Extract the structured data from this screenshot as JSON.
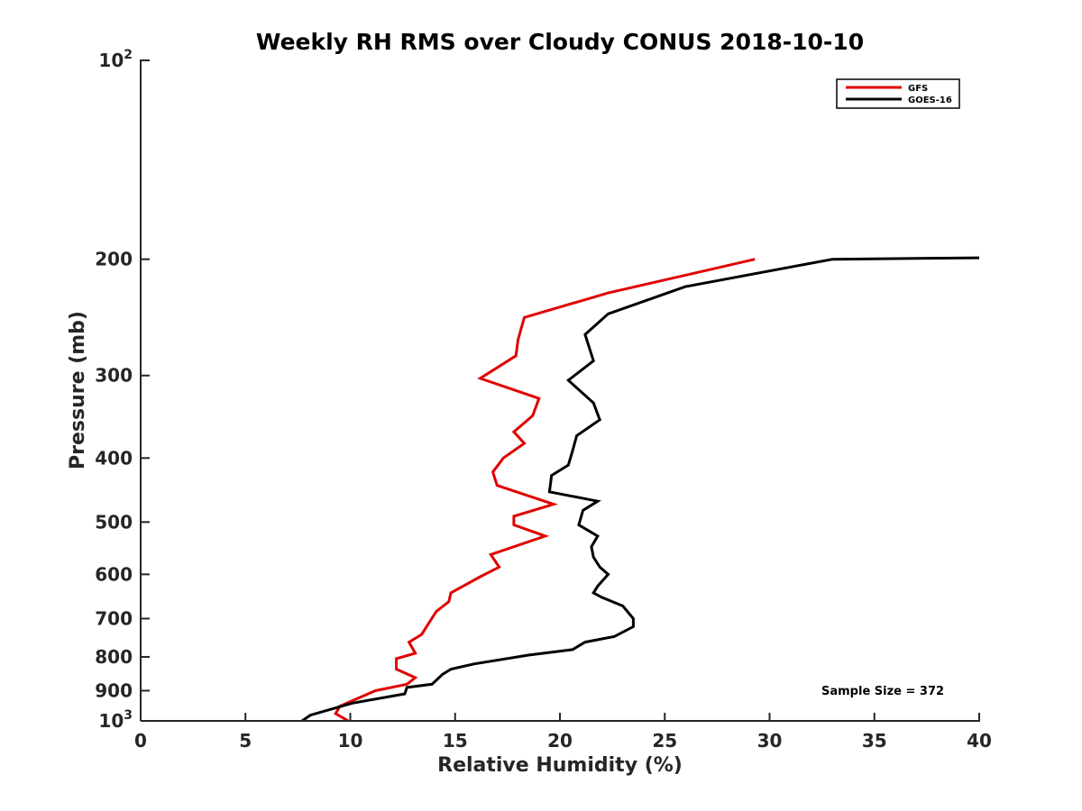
{
  "chart_data": {
    "type": "line",
    "title": "Weekly RH RMS over Cloudy CONUS 2018-10-10",
    "xlabel": "Relative Humidity (%)",
    "ylabel": "Pressure (mb)",
    "xlim": [
      0,
      40
    ],
    "ylim": [
      100,
      1000
    ],
    "yscale": "log",
    "yreversed": true,
    "x_ticks": [
      "0",
      "5",
      "10",
      "15",
      "20",
      "25",
      "30",
      "35",
      "40"
    ],
    "y_ticks": [
      {
        "value": 100,
        "base": "10",
        "exp": "2"
      },
      {
        "value": 200,
        "label": "200"
      },
      {
        "value": 300,
        "label": "300"
      },
      {
        "value": 400,
        "label": "400"
      },
      {
        "value": 500,
        "label": "500"
      },
      {
        "value": 600,
        "label": "600"
      },
      {
        "value": 700,
        "label": "700"
      },
      {
        "value": 800,
        "label": "800"
      },
      {
        "value": 900,
        "label": "900"
      },
      {
        "value": 1000,
        "base": "10",
        "exp": "3"
      }
    ],
    "legend_position": "top-right",
    "annotation": "Sample Size = 372",
    "series": [
      {
        "name": "GFS",
        "color": "#e00000",
        "points": [
          [
            29.3,
            200
          ],
          [
            22.3,
            225
          ],
          [
            18.3,
            245
          ],
          [
            18.0,
            265
          ],
          [
            17.9,
            280
          ],
          [
            16.2,
            303
          ],
          [
            19.0,
            325
          ],
          [
            18.7,
            345
          ],
          [
            17.8,
            365
          ],
          [
            18.3,
            380
          ],
          [
            17.3,
            400
          ],
          [
            16.8,
            420
          ],
          [
            17.0,
            440
          ],
          [
            19.7,
            470
          ],
          [
            17.8,
            490
          ],
          [
            17.8,
            505
          ],
          [
            19.3,
            525
          ],
          [
            16.7,
            560
          ],
          [
            17.1,
            585
          ],
          [
            16.2,
            605
          ],
          [
            14.8,
            640
          ],
          [
            14.7,
            660
          ],
          [
            14.1,
            683
          ],
          [
            13.4,
            740
          ],
          [
            12.8,
            760
          ],
          [
            13.1,
            790
          ],
          [
            12.2,
            805
          ],
          [
            12.2,
            835
          ],
          [
            13.1,
            860
          ],
          [
            12.7,
            880
          ],
          [
            11.2,
            900
          ],
          [
            9.5,
            950
          ],
          [
            9.3,
            975
          ],
          [
            9.9,
            1000
          ]
        ]
      },
      {
        "name": "GOES-16",
        "color": "#000000",
        "points": [
          [
            40.0,
            199
          ],
          [
            33.0,
            200
          ],
          [
            26.0,
            220
          ],
          [
            22.3,
            242
          ],
          [
            21.2,
            260
          ],
          [
            21.6,
            285
          ],
          [
            20.4,
            305
          ],
          [
            21.6,
            330
          ],
          [
            21.9,
            350
          ],
          [
            20.8,
            370
          ],
          [
            20.6,
            390
          ],
          [
            20.4,
            410
          ],
          [
            19.6,
            425
          ],
          [
            19.5,
            450
          ],
          [
            21.8,
            465
          ],
          [
            21.1,
            480
          ],
          [
            20.9,
            505
          ],
          [
            21.8,
            525
          ],
          [
            21.5,
            545
          ],
          [
            21.6,
            565
          ],
          [
            21.9,
            585
          ],
          [
            22.3,
            600
          ],
          [
            21.8,
            625
          ],
          [
            21.6,
            640
          ],
          [
            22.0,
            650
          ],
          [
            23.0,
            670
          ],
          [
            23.5,
            700
          ],
          [
            23.5,
            720
          ],
          [
            22.6,
            745
          ],
          [
            21.2,
            760
          ],
          [
            20.6,
            780
          ],
          [
            18.5,
            795
          ],
          [
            15.9,
            820
          ],
          [
            14.8,
            835
          ],
          [
            14.4,
            850
          ],
          [
            13.9,
            880
          ],
          [
            12.7,
            890
          ],
          [
            12.6,
            910
          ],
          [
            10.1,
            940
          ],
          [
            8.1,
            980
          ],
          [
            7.7,
            1000
          ]
        ]
      }
    ]
  }
}
